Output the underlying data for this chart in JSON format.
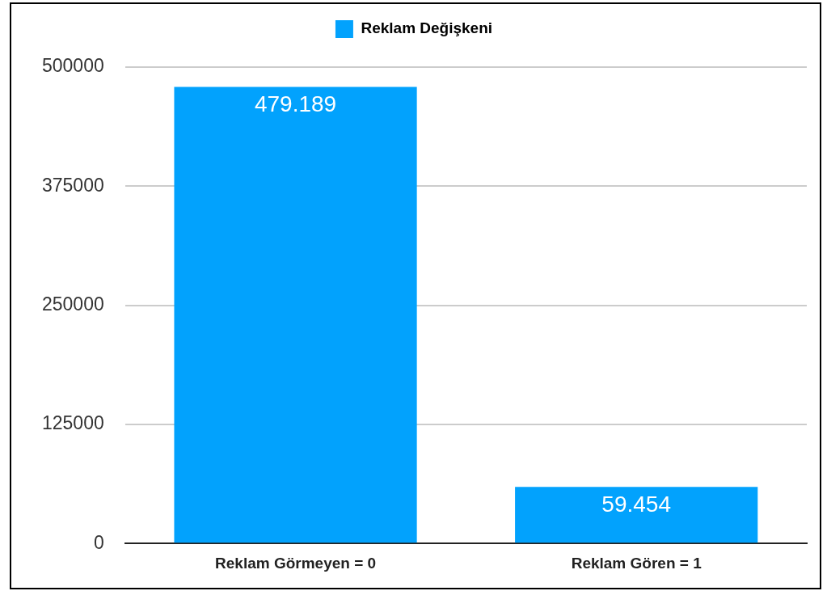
{
  "chart_data": {
    "type": "bar",
    "categories": [
      "Reklam Görmeyen = 0",
      "Reklam Gören = 1"
    ],
    "series": [
      {
        "name": "Reklam Değişkeni",
        "color": "#02a2fd",
        "values": [
          479189,
          59454
        ],
        "value_labels": [
          "479.189",
          "59.454"
        ]
      }
    ],
    "ylim": [
      0,
      500000
    ],
    "yticks": [
      0,
      125000,
      250000,
      375000,
      500000
    ],
    "grid": "y",
    "legend": "top"
  }
}
